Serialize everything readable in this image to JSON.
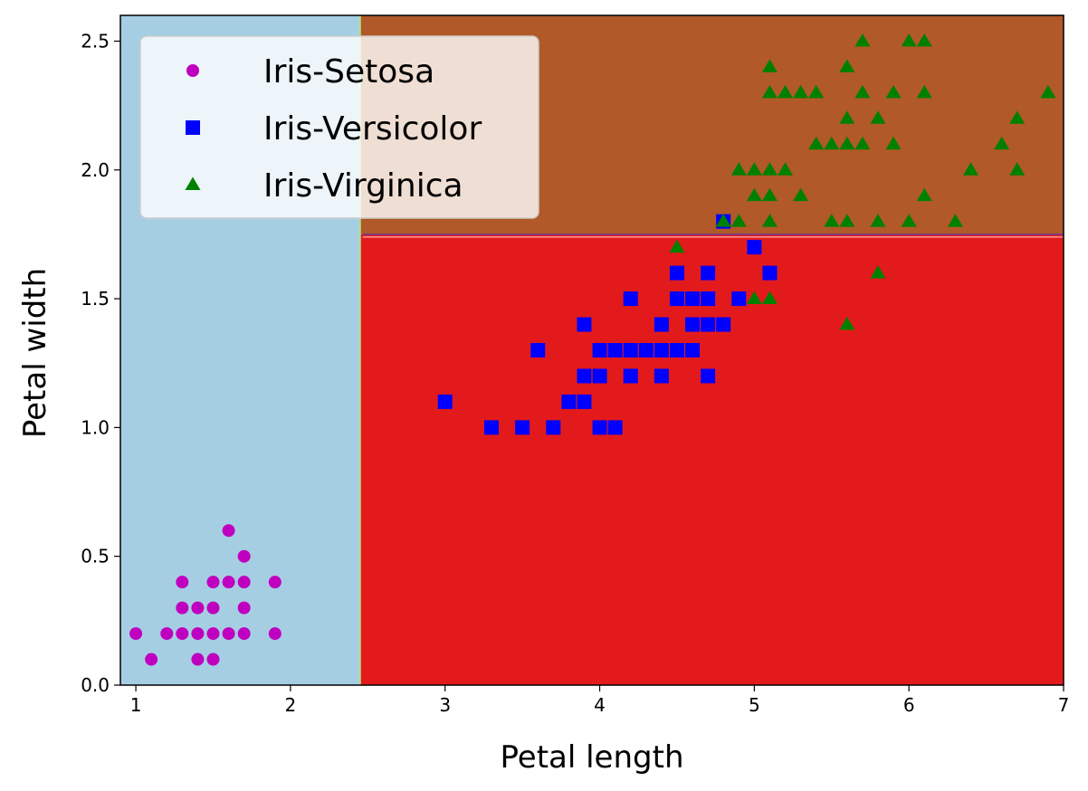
{
  "chart_data": {
    "type": "scatter",
    "title": "",
    "xlabel": "Petal length",
    "ylabel": "Petal width",
    "xlim": [
      0.9,
      7.0
    ],
    "ylim": [
      0.0,
      2.6
    ],
    "xticks": [
      1,
      2,
      3,
      4,
      5,
      6,
      7
    ],
    "xtick_labels": [
      "1",
      "2",
      "3",
      "4",
      "5",
      "6",
      "7"
    ],
    "yticks": [
      0.0,
      0.5,
      1.0,
      1.5,
      2.0,
      2.5
    ],
    "ytick_labels": [
      "0.0",
      "0.5",
      "1.0",
      "1.5",
      "2.0",
      "2.5"
    ],
    "grid": false,
    "legend_placement": "top-left",
    "decision_regions": [
      {
        "class": "Iris-Setosa",
        "color": "#a6cee3",
        "x_range": [
          0.9,
          2.45
        ],
        "y_range": [
          0.0,
          2.6
        ]
      },
      {
        "class": "Iris-Versicolor",
        "color": "#e31a1c",
        "x_range": [
          2.45,
          7.0
        ],
        "y_range": [
          0.0,
          1.75
        ]
      },
      {
        "class": "Iris-Virginica",
        "color": "#b15928",
        "x_range": [
          2.45,
          7.0
        ],
        "y_range": [
          1.75,
          2.6
        ]
      }
    ],
    "series": [
      {
        "name": "Iris-Setosa",
        "marker": "circle",
        "color": "#bf00bf",
        "points": [
          [
            1.0,
            0.2
          ],
          [
            1.1,
            0.1
          ],
          [
            1.2,
            0.2
          ],
          [
            1.3,
            0.2
          ],
          [
            1.3,
            0.3
          ],
          [
            1.3,
            0.4
          ],
          [
            1.4,
            0.1
          ],
          [
            1.4,
            0.2
          ],
          [
            1.4,
            0.3
          ],
          [
            1.5,
            0.1
          ],
          [
            1.5,
            0.2
          ],
          [
            1.5,
            0.3
          ],
          [
            1.5,
            0.4
          ],
          [
            1.6,
            0.2
          ],
          [
            1.6,
            0.4
          ],
          [
            1.6,
            0.6
          ],
          [
            1.7,
            0.2
          ],
          [
            1.7,
            0.3
          ],
          [
            1.7,
            0.4
          ],
          [
            1.7,
            0.5
          ],
          [
            1.9,
            0.2
          ],
          [
            1.9,
            0.4
          ]
        ]
      },
      {
        "name": "Iris-Versicolor",
        "marker": "square",
        "color": "#0000ff",
        "points": [
          [
            3.0,
            1.1
          ],
          [
            3.3,
            1.0
          ],
          [
            3.5,
            1.0
          ],
          [
            3.6,
            1.3
          ],
          [
            3.7,
            1.0
          ],
          [
            3.8,
            1.1
          ],
          [
            3.9,
            1.1
          ],
          [
            3.9,
            1.2
          ],
          [
            3.9,
            1.4
          ],
          [
            4.0,
            1.0
          ],
          [
            4.0,
            1.2
          ],
          [
            4.0,
            1.3
          ],
          [
            4.1,
            1.0
          ],
          [
            4.1,
            1.3
          ],
          [
            4.2,
            1.2
          ],
          [
            4.2,
            1.3
          ],
          [
            4.2,
            1.5
          ],
          [
            4.3,
            1.3
          ],
          [
            4.4,
            1.2
          ],
          [
            4.4,
            1.3
          ],
          [
            4.4,
            1.4
          ],
          [
            4.5,
            1.3
          ],
          [
            4.5,
            1.5
          ],
          [
            4.5,
            1.6
          ],
          [
            4.6,
            1.3
          ],
          [
            4.6,
            1.4
          ],
          [
            4.6,
            1.5
          ],
          [
            4.7,
            1.2
          ],
          [
            4.7,
            1.4
          ],
          [
            4.7,
            1.5
          ],
          [
            4.7,
            1.6
          ],
          [
            4.8,
            1.4
          ],
          [
            4.8,
            1.8
          ],
          [
            4.9,
            1.5
          ],
          [
            5.0,
            1.7
          ],
          [
            5.1,
            1.6
          ]
        ]
      },
      {
        "name": "Iris-Virginica",
        "marker": "triangle",
        "color": "#008000",
        "points": [
          [
            4.5,
            1.7
          ],
          [
            4.8,
            1.8
          ],
          [
            4.9,
            1.8
          ],
          [
            4.9,
            2.0
          ],
          [
            5.0,
            1.5
          ],
          [
            5.0,
            1.9
          ],
          [
            5.0,
            2.0
          ],
          [
            5.1,
            1.5
          ],
          [
            5.1,
            1.8
          ],
          [
            5.1,
            1.9
          ],
          [
            5.1,
            2.0
          ],
          [
            5.1,
            2.3
          ],
          [
            5.1,
            2.4
          ],
          [
            5.2,
            2.0
          ],
          [
            5.2,
            2.3
          ],
          [
            5.3,
            1.9
          ],
          [
            5.3,
            2.3
          ],
          [
            5.4,
            2.1
          ],
          [
            5.4,
            2.3
          ],
          [
            5.5,
            1.8
          ],
          [
            5.5,
            2.1
          ],
          [
            5.6,
            1.4
          ],
          [
            5.6,
            1.8
          ],
          [
            5.6,
            2.1
          ],
          [
            5.6,
            2.2
          ],
          [
            5.6,
            2.4
          ],
          [
            5.7,
            2.1
          ],
          [
            5.7,
            2.3
          ],
          [
            5.7,
            2.5
          ],
          [
            5.8,
            1.6
          ],
          [
            5.8,
            1.8
          ],
          [
            5.8,
            2.2
          ],
          [
            5.9,
            2.1
          ],
          [
            5.9,
            2.3
          ],
          [
            6.0,
            1.8
          ],
          [
            6.0,
            2.5
          ],
          [
            6.1,
            1.9
          ],
          [
            6.1,
            2.3
          ],
          [
            6.1,
            2.5
          ],
          [
            6.3,
            1.8
          ],
          [
            6.4,
            2.0
          ],
          [
            6.6,
            2.1
          ],
          [
            6.7,
            2.0
          ],
          [
            6.7,
            2.2
          ],
          [
            6.9,
            2.3
          ]
        ]
      }
    ]
  }
}
